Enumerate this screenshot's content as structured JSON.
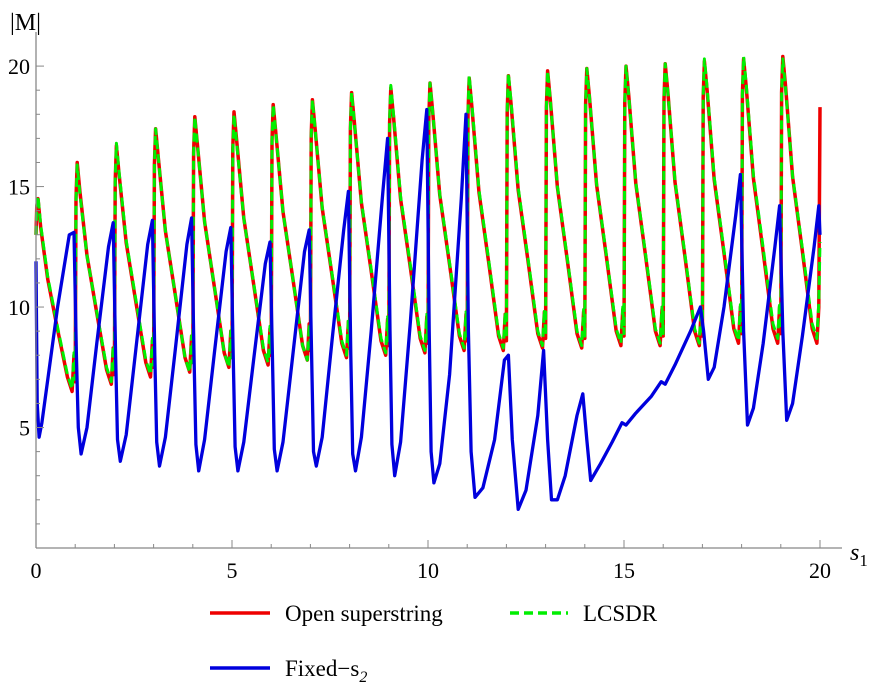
{
  "chart_data": {
    "type": "line",
    "xlabel": "s",
    "xlabel_sub": "1",
    "ylabel": "|M|",
    "xlim": [
      0,
      20
    ],
    "ylim": [
      0,
      21
    ],
    "xticks": [
      0,
      5,
      10,
      15,
      20
    ],
    "yticks": [
      5,
      10,
      15,
      20
    ],
    "legend": {
      "placement": "bottom",
      "entries": [
        {
          "label": "Open superstring",
          "series": 0
        },
        {
          "label": "LCSDR",
          "series": 1
        },
        {
          "label": "Fixed−s",
          "label_sub": "2",
          "series": 2
        }
      ]
    },
    "colors": {
      "open": "#ee0000",
      "lcsdr": "#00ee00",
      "fixed": "#0000dd"
    },
    "series": [
      {
        "name": "Open superstring",
        "style": "solid",
        "peaks": [
          14.5,
          16.0,
          16.7,
          17.4,
          17.9,
          18.1,
          18.4,
          18.6,
          18.9,
          19.1,
          19.3,
          19.5,
          19.6,
          19.8,
          19.9,
          20.0,
          20.1,
          20.2,
          20.3,
          20.4
        ],
        "troughs": [
          6.5,
          6.8,
          7.1,
          7.3,
          7.5,
          7.6,
          7.8,
          7.9,
          8.0,
          8.1,
          8.2,
          8.2,
          8.3,
          8.3,
          8.4,
          8.4,
          8.4,
          8.5,
          8.5,
          8.5
        ],
        "end_value": 18.3
      },
      {
        "name": "LCSDR",
        "style": "dashed",
        "peaks": [
          14.6,
          15.9,
          16.8,
          17.4,
          17.9,
          18.0,
          18.4,
          18.6,
          18.9,
          19.2,
          19.3,
          19.6,
          19.7,
          19.8,
          19.9,
          20.0,
          20.1,
          20.3,
          20.4,
          20.3
        ],
        "troughs": [
          6.6,
          6.9,
          7.2,
          7.3,
          7.5,
          7.7,
          7.8,
          8.0,
          8.1,
          8.2,
          8.3,
          8.3,
          8.4,
          8.4,
          8.5,
          8.5,
          8.5,
          8.6,
          8.7,
          8.7
        ],
        "end_value": 12.7
      },
      {
        "name": "Fixed−s2",
        "style": "solid",
        "x": [
          0,
          0.03,
          0.08,
          0.15,
          0.3,
          0.55,
          0.85,
          0.97,
          1.03,
          1.08,
          1.15,
          1.3,
          1.55,
          1.85,
          1.97,
          2.03,
          2.08,
          2.15,
          2.3,
          2.55,
          2.85,
          2.97,
          3.03,
          3.08,
          3.15,
          3.3,
          3.55,
          3.85,
          3.97,
          4.03,
          4.08,
          4.15,
          4.3,
          4.55,
          4.85,
          4.97,
          5.03,
          5.08,
          5.15,
          5.3,
          5.55,
          5.85,
          5.97,
          6.03,
          6.08,
          6.15,
          6.3,
          6.55,
          6.85,
          6.97,
          7.03,
          7.08,
          7.15,
          7.3,
          7.55,
          7.85,
          7.97,
          8.03,
          8.08,
          8.15,
          8.3,
          8.55,
          8.85,
          8.97,
          9.03,
          9.08,
          9.15,
          9.3,
          9.55,
          9.85,
          9.97,
          10.03,
          10.08,
          10.15,
          10.3,
          10.55,
          10.85,
          10.97,
          11.03,
          11.1,
          11.2,
          11.4,
          11.7,
          11.95,
          12.05,
          12.15,
          12.3,
          12.5,
          12.8,
          12.95,
          13.05,
          13.15,
          13.3,
          13.5,
          13.8,
          13.95,
          14.05,
          14.15,
          14.4,
          14.7,
          14.95,
          15.05,
          15.3,
          15.7,
          15.95,
          16.05,
          16.3,
          16.7,
          16.95,
          17.03,
          17.15,
          17.3,
          17.55,
          17.85,
          17.97,
          18.05,
          18.15,
          18.3,
          18.55,
          18.85,
          18.97,
          19.05,
          19.15,
          19.3,
          19.55,
          19.85,
          19.97,
          20.0
        ],
        "values": [
          11.9,
          6.0,
          4.6,
          5.2,
          7.0,
          10.0,
          13.0,
          13.1,
          8.0,
          5.0,
          3.9,
          5.0,
          8.5,
          12.5,
          13.5,
          8.0,
          4.5,
          3.6,
          4.7,
          8.3,
          12.6,
          13.6,
          8.0,
          4.4,
          3.4,
          4.6,
          8.2,
          12.6,
          13.7,
          8.0,
          4.3,
          3.2,
          4.5,
          8.1,
          12.3,
          13.3,
          8.0,
          4.2,
          3.2,
          4.4,
          7.8,
          11.8,
          12.7,
          8.0,
          4.1,
          3.2,
          4.4,
          8.0,
          12.3,
          13.2,
          8.0,
          4.0,
          3.4,
          4.6,
          8.6,
          13.2,
          14.8,
          8.0,
          3.9,
          3.2,
          4.6,
          9.0,
          14.8,
          17.0,
          9.0,
          4.3,
          3.0,
          4.4,
          9.4,
          16.1,
          18.2,
          9.0,
          4.0,
          2.7,
          3.5,
          7.2,
          14.5,
          18.0,
          9.0,
          4.0,
          2.1,
          2.5,
          4.5,
          7.8,
          8.0,
          4.5,
          1.6,
          2.4,
          5.5,
          8.2,
          4.5,
          2.0,
          2.0,
          3.0,
          5.5,
          6.4,
          4.5,
          2.8,
          3.5,
          4.4,
          5.2,
          5.1,
          5.6,
          6.3,
          6.9,
          6.8,
          7.6,
          9.0,
          10.0,
          9.0,
          7.0,
          7.5,
          10.0,
          13.8,
          15.5,
          9.0,
          5.1,
          5.8,
          8.5,
          12.5,
          14.2,
          9.0,
          5.3,
          6.0,
          8.8,
          12.5,
          14.2,
          13.0
        ]
      }
    ]
  }
}
